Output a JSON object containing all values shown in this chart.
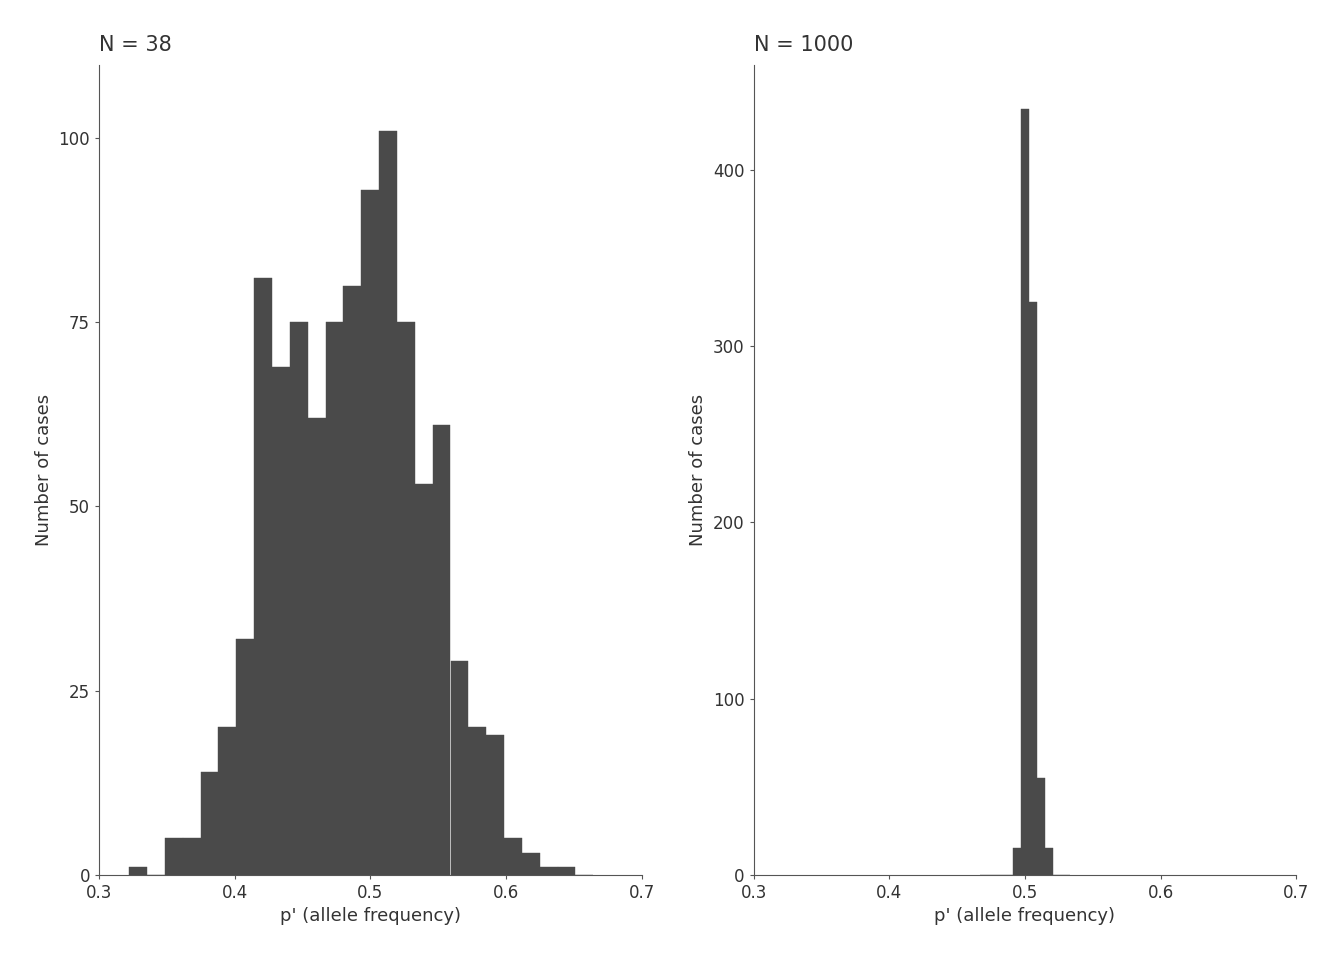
{
  "title_left": "N = 38",
  "title_right": "N = 1000",
  "xlabel": "p' (allele frequency)",
  "ylabel": "Number of cases",
  "bar_color": "#4a4a4a",
  "xlim": [
    0.3,
    0.7
  ],
  "ylim_left": [
    0,
    110
  ],
  "ylim_right": [
    0,
    460
  ],
  "yticks_left": [
    0,
    25,
    50,
    75,
    100
  ],
  "yticks_right": [
    0,
    100,
    200,
    300,
    400
  ],
  "xticks": [
    0.3,
    0.4,
    0.5,
    0.6,
    0.7
  ],
  "background_color": "#ffffff",
  "title_fontsize": 15,
  "label_fontsize": 13,
  "tick_fontsize": 12,
  "left_bin_centers": [
    0.3289,
    0.3421,
    0.3553,
    0.3684,
    0.3816,
    0.3947,
    0.4079,
    0.4211,
    0.4342,
    0.4474,
    0.4605,
    0.4737,
    0.4868,
    0.5,
    0.5132,
    0.5263,
    0.5395,
    0.5526,
    0.5658,
    0.5789,
    0.5921,
    0.6053,
    0.6184,
    0.6316,
    0.6447,
    0.6579
  ],
  "left_counts": [
    1,
    0,
    5,
    5,
    14,
    20,
    32,
    81,
    69,
    75,
    62,
    75,
    80,
    93,
    101,
    75,
    53,
    61,
    29,
    20,
    19,
    5,
    3,
    1,
    1,
    0
  ],
  "right_bin_centers": [
    0.47,
    0.476,
    0.482,
    0.488,
    0.494,
    0.5,
    0.506,
    0.512,
    0.518,
    0.524,
    0.53
  ],
  "right_counts": [
    0,
    0,
    0,
    0,
    15,
    435,
    325,
    55,
    15,
    0,
    0
  ]
}
